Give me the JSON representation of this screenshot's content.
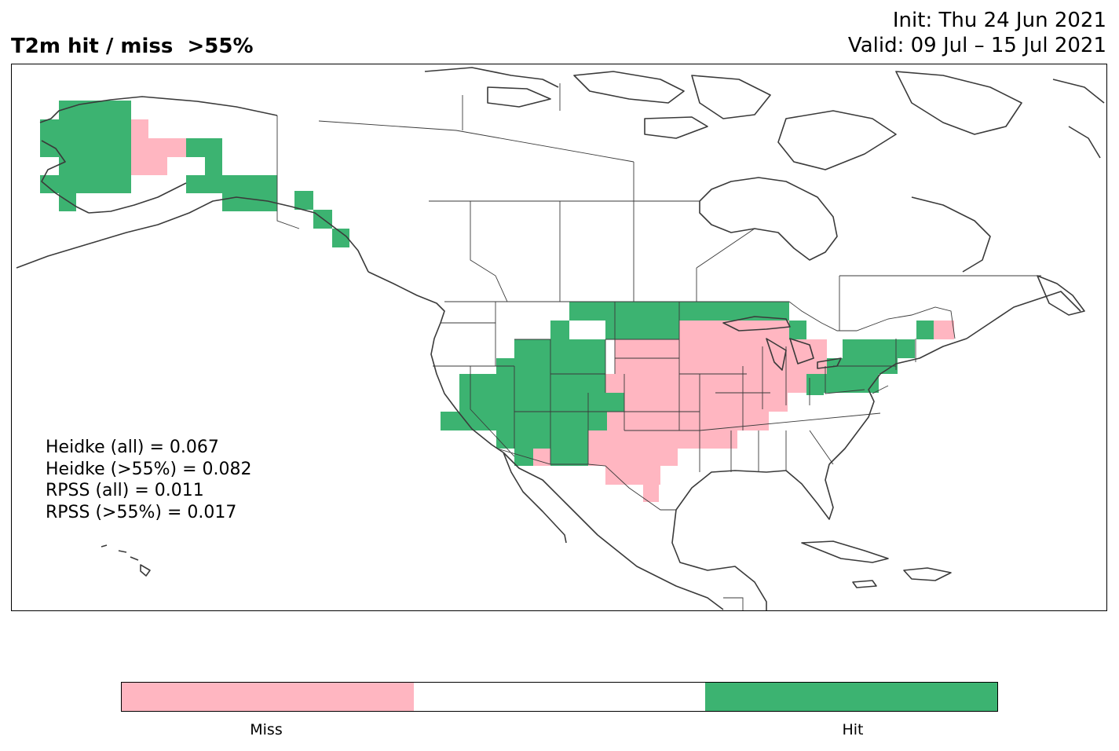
{
  "header": {
    "title": "T2m hit / miss  >55%",
    "init": "Init: Thu 24 Jun 2021",
    "valid": "Valid: 09 Jul – 15 Jul 2021"
  },
  "scores": [
    "Heidke (all) = 0.067",
    "Heidke (>55%) = 0.082",
    "RPSS (all) = 0.011",
    "RPSS (>55%) = 0.017"
  ],
  "legend": {
    "miss_label": "Miss",
    "hit_label": "Hit",
    "colors": {
      "miss": "#ffb6c1",
      "neutral": "#ffffff",
      "hit": "#3cb371"
    }
  },
  "colors": {
    "coastline": "#3a3a3a",
    "border": "#3a3a3a",
    "frame": "#000000"
  }
}
